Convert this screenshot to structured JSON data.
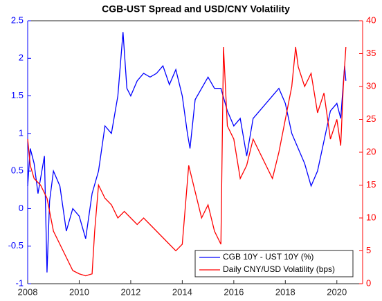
{
  "chart_data": {
    "type": "line",
    "title": "CGB-UST Spread and USD/CNY Volatility",
    "xlim": [
      2008,
      2021
    ],
    "xticks": [
      2008,
      2010,
      2012,
      2014,
      2016,
      2018,
      2020
    ],
    "ylim": [
      -1,
      2.5
    ],
    "yticks": [
      -1,
      -0.5,
      0,
      0.5,
      1,
      1.5,
      2,
      2.5
    ],
    "y2lim": [
      0,
      40
    ],
    "y2ticks": [
      0,
      5,
      10,
      15,
      20,
      25,
      30,
      35,
      40
    ],
    "legend": "lower right",
    "series": [
      {
        "name": "CGB 10Y - UST 10Y (%)",
        "color": "#0000ff",
        "x": [
          2008.0,
          2008.1,
          2008.25,
          2008.4,
          2008.5,
          2008.65,
          2008.75,
          2008.85,
          2009.0,
          2009.25,
          2009.5,
          2009.75,
          2010.0,
          2010.25,
          2010.5,
          2010.75,
          2011.0,
          2011.25,
          2011.5,
          2011.7,
          2011.85,
          2012.0,
          2012.25,
          2012.5,
          2012.75,
          2013.0,
          2013.25,
          2013.5,
          2013.75,
          2014.0,
          2014.2,
          2014.3,
          2014.5,
          2014.75,
          2015.0,
          2015.25,
          2015.5,
          2015.75,
          2016.0,
          2016.25,
          2016.5,
          2016.75,
          2017.0,
          2017.25,
          2017.5,
          2017.75,
          2018.0,
          2018.25,
          2018.5,
          2018.75,
          2019.0,
          2019.25,
          2019.5,
          2019.75,
          2020.0,
          2020.15,
          2020.3,
          2020.35
        ],
        "values": [
          0.3,
          0.8,
          0.6,
          0.2,
          0.4,
          0.7,
          -0.85,
          0.1,
          0.5,
          0.3,
          -0.3,
          0.0,
          -0.1,
          -0.4,
          0.2,
          0.5,
          1.1,
          1.0,
          1.5,
          2.35,
          1.6,
          1.5,
          1.7,
          1.8,
          1.75,
          1.8,
          1.9,
          1.65,
          1.85,
          1.5,
          1.0,
          0.8,
          1.45,
          1.6,
          1.75,
          1.6,
          1.6,
          1.3,
          1.1,
          1.2,
          0.7,
          1.2,
          1.3,
          1.4,
          1.5,
          1.6,
          1.4,
          1.0,
          0.8,
          0.6,
          0.3,
          0.5,
          0.9,
          1.3,
          1.4,
          1.2,
          1.9,
          1.7
        ]
      },
      {
        "name": "Daily CNY/USD Volatility (bps)",
        "color": "#ff0000",
        "axis": "y2",
        "x": [
          2008.0,
          2008.1,
          2008.25,
          2008.5,
          2008.75,
          2009.0,
          2009.25,
          2009.5,
          2009.75,
          2010.0,
          2010.25,
          2010.5,
          2010.6,
          2010.75,
          2011.0,
          2011.25,
          2011.5,
          2011.75,
          2012.0,
          2012.25,
          2012.5,
          2012.75,
          2013.0,
          2013.25,
          2013.5,
          2013.75,
          2014.0,
          2014.25,
          2014.5,
          2014.75,
          2015.0,
          2015.25,
          2015.5,
          2015.6,
          2015.75,
          2016.0,
          2016.25,
          2016.5,
          2016.75,
          2017.0,
          2017.25,
          2017.5,
          2017.75,
          2018.0,
          2018.25,
          2018.4,
          2018.5,
          2018.75,
          2019.0,
          2019.25,
          2019.5,
          2019.75,
          2020.0,
          2020.15,
          2020.25,
          2020.35
        ],
        "values": [
          22,
          18,
          16,
          15,
          13,
          8,
          6,
          4,
          2,
          1.5,
          1.2,
          1.5,
          8,
          15,
          13,
          12,
          10,
          11,
          10,
          9,
          10,
          9,
          8,
          7,
          6,
          5,
          6,
          18,
          14,
          10,
          12,
          8,
          6,
          36,
          24,
          22,
          16,
          18,
          22,
          20,
          18,
          16,
          20,
          25,
          30,
          36,
          33,
          30,
          32,
          26,
          29,
          22,
          25,
          21,
          30,
          36
        ]
      }
    ]
  }
}
